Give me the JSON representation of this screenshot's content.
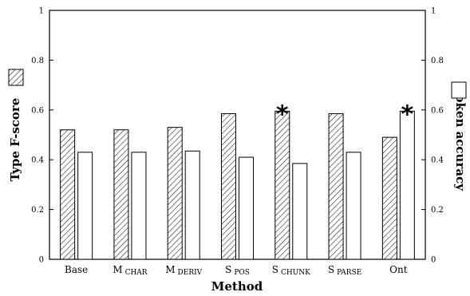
{
  "chart_data": {
    "type": "bar",
    "xlabel": "Method",
    "ylabel_left": "Type F-score",
    "ylabel_right": "Token accuracy",
    "ylim": [
      0,
      1
    ],
    "yticks": [
      "0",
      "0.2",
      "0.4",
      "0.6",
      "0.8",
      "1"
    ],
    "categories": [
      {
        "main": "Base",
        "sub": ""
      },
      {
        "main": "M",
        "sub": "CHAR"
      },
      {
        "main": "M",
        "sub": "DERIV"
      },
      {
        "main": "S",
        "sub": "POS"
      },
      {
        "main": "S",
        "sub": "CHUNK"
      },
      {
        "main": "S",
        "sub": "PARSE"
      },
      {
        "main": "Ont",
        "sub": ""
      }
    ],
    "series": [
      {
        "pattern": "hatched",
        "axis": "left",
        "values": [
          0.52,
          0.52,
          0.53,
          0.585,
          0.595,
          0.585,
          0.49
        ]
      },
      {
        "pattern": "white",
        "axis": "right",
        "values": [
          0.43,
          0.43,
          0.435,
          0.41,
          0.385,
          0.43,
          0.595
        ]
      }
    ],
    "annotations": [
      {
        "text": "*",
        "category_index": 4,
        "series": 0
      },
      {
        "text": "*",
        "category_index": 6,
        "series": 1
      }
    ],
    "grid": false,
    "legend": "outside-left-and-right"
  }
}
